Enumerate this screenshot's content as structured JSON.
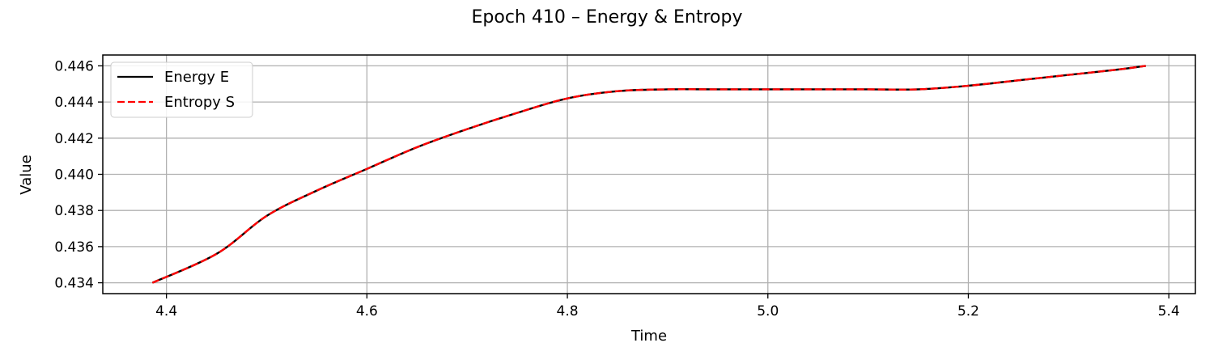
{
  "chart_data": {
    "type": "line",
    "title": "Epoch 410 – Energy & Entropy",
    "xlabel": "Time",
    "ylabel": "Value",
    "xlim": [
      4.3365,
      5.4265
    ],
    "ylim": [
      0.4334,
      0.4466
    ],
    "xticks": [
      4.4,
      4.6,
      4.8,
      5.0,
      5.2,
      5.4
    ],
    "xtick_labels": [
      "4.4",
      "4.6",
      "4.8",
      "5.0",
      "5.2",
      "5.4"
    ],
    "yticks": [
      0.434,
      0.436,
      0.438,
      0.44,
      0.442,
      0.444,
      0.446
    ],
    "ytick_labels": [
      "0.434",
      "0.436",
      "0.438",
      "0.440",
      "0.442",
      "0.444",
      "0.446"
    ],
    "grid": true,
    "legend_position": "top-left",
    "series": [
      {
        "name": "Energy E",
        "color": "#000000",
        "style": "solid",
        "x": [
          4.386,
          4.45,
          4.5,
          4.55,
          4.6,
          4.65,
          4.7,
          4.75,
          4.8,
          4.85,
          4.9,
          4.95,
          5.0,
          5.05,
          5.1,
          5.15,
          5.2,
          5.25,
          5.3,
          5.35,
          5.377
        ],
        "y": [
          0.434,
          0.4356,
          0.4377,
          0.4391,
          0.4403,
          0.4415,
          0.4425,
          0.4434,
          0.4442,
          0.4446,
          0.4447,
          0.4447,
          0.4447,
          0.4447,
          0.4447,
          0.4447,
          0.4449,
          0.4452,
          0.4455,
          0.4458,
          0.446
        ]
      },
      {
        "name": "Entropy S",
        "color": "#ff0000",
        "style": "dashed",
        "x": [
          4.386,
          4.45,
          4.5,
          4.55,
          4.6,
          4.65,
          4.7,
          4.75,
          4.8,
          4.85,
          4.9,
          4.95,
          5.0,
          5.05,
          5.1,
          5.15,
          5.2,
          5.25,
          5.3,
          5.35,
          5.377
        ],
        "y": [
          0.434,
          0.4356,
          0.4377,
          0.4391,
          0.4403,
          0.4415,
          0.4425,
          0.4434,
          0.4442,
          0.4446,
          0.4447,
          0.4447,
          0.4447,
          0.4447,
          0.4447,
          0.4447,
          0.4449,
          0.4452,
          0.4455,
          0.4458,
          0.446
        ]
      }
    ]
  }
}
